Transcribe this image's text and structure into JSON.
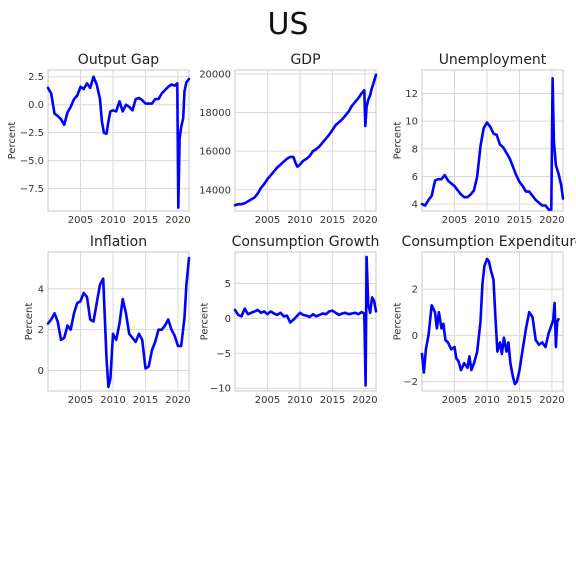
{
  "figure_title": "US",
  "chart_data": [
    {
      "type": "line",
      "title": "Output Gap",
      "xlabel": "",
      "ylabel": "Percent",
      "xlim": [
        2000.0,
        2021.7
      ],
      "ylim": [
        -9.5,
        3.1
      ],
      "xticks": [
        2005,
        2010,
        2015,
        2020
      ],
      "yticks": [
        2.5,
        0.0,
        -2.5,
        -5.0,
        -7.5
      ],
      "yticklabels": [
        "2.5",
        "0.0",
        "−2.5",
        "−5.0",
        "−7.5"
      ],
      "grid": true,
      "series": [
        {
          "color": "#0000ff",
          "x": [
            2000.0,
            2000.5,
            2001.0,
            2001.5,
            2002.0,
            2002.5,
            2003.0,
            2003.5,
            2004.0,
            2004.5,
            2005.0,
            2005.5,
            2006.0,
            2006.5,
            2007.0,
            2007.5,
            2008.0,
            2008.3,
            2008.6,
            2009.0,
            2009.3,
            2009.6,
            2010.0,
            2010.5,
            2011.0,
            2011.5,
            2012.0,
            2012.5,
            2013.0,
            2013.5,
            2014.0,
            2014.5,
            2015.0,
            2015.5,
            2016.0,
            2016.5,
            2017.0,
            2017.5,
            2018.0,
            2018.5,
            2019.0,
            2019.5,
            2019.9,
            2020.05,
            2020.25,
            2020.5,
            2020.8,
            2021.0,
            2021.3,
            2021.7
          ],
          "y": [
            1.5,
            1.0,
            -0.8,
            -1.0,
            -1.3,
            -1.8,
            -0.7,
            -0.2,
            0.5,
            0.8,
            1.6,
            1.4,
            1.9,
            1.5,
            2.5,
            1.8,
            0.5,
            -1.5,
            -2.5,
            -2.6,
            -1.5,
            -0.6,
            -0.5,
            -0.6,
            0.3,
            -0.6,
            0.0,
            -0.2,
            -0.5,
            0.5,
            0.6,
            0.4,
            0.1,
            0.1,
            0.1,
            0.5,
            0.5,
            1.0,
            1.3,
            1.6,
            1.8,
            1.7,
            1.9,
            -9.2,
            -3.0,
            -2.0,
            -1.2,
            1.2,
            2.0,
            2.3
          ]
        }
      ]
    },
    {
      "type": "line",
      "title": "GDP",
      "xlabel": "",
      "ylabel": "",
      "xlim": [
        2000.0,
        2021.7
      ],
      "ylim": [
        12900,
        20200
      ],
      "xticks": [
        2005,
        2010,
        2015,
        2020
      ],
      "yticks": [
        20000,
        18000,
        16000,
        14000
      ],
      "yticklabels": [
        "20000",
        "18000",
        "16000",
        "14000"
      ],
      "grid": true,
      "series": [
        {
          "color": "#0000ff",
          "x": [
            2000.0,
            2000.5,
            2001.0,
            2001.5,
            2002.0,
            2002.5,
            2003.0,
            2003.5,
            2004.0,
            2004.5,
            2005.0,
            2005.5,
            2006.0,
            2006.5,
            2007.0,
            2007.5,
            2008.0,
            2008.5,
            2009.0,
            2009.3,
            2009.6,
            2010.0,
            2010.5,
            2011.0,
            2011.5,
            2012.0,
            2012.5,
            2013.0,
            2013.5,
            2014.0,
            2014.5,
            2015.0,
            2015.5,
            2016.0,
            2016.5,
            2017.0,
            2017.5,
            2018.0,
            2018.5,
            2019.0,
            2019.5,
            2019.9,
            2020.05,
            2020.25,
            2020.5,
            2020.8,
            2021.0,
            2021.3,
            2021.7
          ],
          "y": [
            13200,
            13250,
            13250,
            13300,
            13400,
            13500,
            13600,
            13800,
            14100,
            14300,
            14550,
            14750,
            14950,
            15150,
            15300,
            15450,
            15600,
            15700,
            15700,
            15400,
            15200,
            15300,
            15500,
            15600,
            15750,
            16000,
            16100,
            16250,
            16450,
            16650,
            16850,
            17100,
            17350,
            17500,
            17650,
            17850,
            18050,
            18350,
            18550,
            18750,
            19000,
            19150,
            17300,
            18300,
            18650,
            18900,
            19200,
            19500,
            19950
          ]
        }
      ]
    },
    {
      "type": "line",
      "title": "Unemployment",
      "xlabel": "",
      "ylabel": "Percent",
      "xlim": [
        2000.0,
        2021.7
      ],
      "ylim": [
        3.5,
        13.7
      ],
      "xticks": [
        2005,
        2010,
        2015,
        2020
      ],
      "yticks": [
        12,
        10,
        8,
        6,
        4
      ],
      "yticklabels": [
        "12",
        "10",
        "8",
        "6",
        "4"
      ],
      "grid": true,
      "series": [
        {
          "color": "#0000ff",
          "x": [
            2000.0,
            2000.5,
            2001.0,
            2001.5,
            2002.0,
            2002.5,
            2003.0,
            2003.5,
            2004.0,
            2004.5,
            2005.0,
            2005.5,
            2006.0,
            2006.5,
            2007.0,
            2007.5,
            2008.0,
            2008.5,
            2009.0,
            2009.5,
            2010.0,
            2010.5,
            2011.0,
            2011.5,
            2012.0,
            2012.5,
            2013.0,
            2013.5,
            2014.0,
            2014.5,
            2015.0,
            2015.5,
            2016.0,
            2016.5,
            2017.0,
            2017.5,
            2018.0,
            2018.5,
            2019.0,
            2019.5,
            2019.9,
            2020.1,
            2020.3,
            2020.6,
            2021.0,
            2021.4,
            2021.7
          ],
          "y": [
            4.0,
            3.9,
            4.3,
            4.6,
            5.7,
            5.8,
            5.8,
            6.1,
            5.7,
            5.5,
            5.3,
            5.0,
            4.7,
            4.5,
            4.5,
            4.7,
            5.0,
            6.0,
            8.2,
            9.5,
            9.9,
            9.6,
            9.1,
            9.0,
            8.3,
            8.1,
            7.7,
            7.3,
            6.7,
            6.1,
            5.6,
            5.3,
            4.9,
            4.9,
            4.6,
            4.3,
            4.1,
            3.9,
            3.9,
            3.6,
            3.6,
            13.1,
            8.5,
            6.8,
            6.2,
            5.4,
            4.4
          ]
        }
      ]
    },
    {
      "type": "line",
      "title": "Inflation",
      "xlabel": "",
      "ylabel": "Percent",
      "xlim": [
        2000.0,
        2021.7
      ],
      "ylim": [
        -1.0,
        5.8
      ],
      "xticks": [
        2005,
        2010,
        2015,
        2020
      ],
      "yticks": [
        4,
        2,
        0
      ],
      "yticklabels": [
        "4",
        "2",
        "0"
      ],
      "grid": true,
      "series": [
        {
          "color": "#0000ff",
          "x": [
            2000.0,
            2000.5,
            2001.0,
            2001.5,
            2002.0,
            2002.5,
            2003.0,
            2003.5,
            2004.0,
            2004.5,
            2005.0,
            2005.5,
            2006.0,
            2006.5,
            2007.0,
            2007.5,
            2008.0,
            2008.5,
            2009.0,
            2009.3,
            2009.6,
            2010.0,
            2010.5,
            2011.0,
            2011.5,
            2012.0,
            2012.5,
            2013.0,
            2013.5,
            2014.0,
            2014.5,
            2015.0,
            2015.5,
            2016.0,
            2016.5,
            2017.0,
            2017.5,
            2018.0,
            2018.5,
            2019.0,
            2019.5,
            2020.0,
            2020.5,
            2021.0,
            2021.3,
            2021.7
          ],
          "y": [
            2.3,
            2.5,
            2.8,
            2.4,
            1.5,
            1.6,
            2.2,
            2.0,
            2.8,
            3.3,
            3.4,
            3.8,
            3.6,
            2.5,
            2.4,
            3.3,
            4.2,
            4.5,
            0.6,
            -0.8,
            -0.4,
            1.8,
            1.5,
            2.3,
            3.5,
            2.8,
            1.8,
            1.6,
            1.4,
            1.8,
            1.5,
            0.1,
            0.2,
            1.0,
            1.4,
            2.0,
            2.0,
            2.2,
            2.5,
            2.0,
            1.7,
            1.2,
            1.2,
            2.6,
            4.2,
            5.5
          ]
        }
      ]
    },
    {
      "type": "line",
      "title": "Consumption Growth",
      "xlabel": "",
      "ylabel": "Percent",
      "xlim": [
        2000.0,
        2021.7
      ],
      "ylim": [
        -10.4,
        9.5
      ],
      "xticks": [
        2005,
        2010,
        2015,
        2020
      ],
      "yticks": [
        5,
        0,
        -5,
        -10
      ],
      "yticklabels": [
        "5",
        "0",
        "−5",
        "−10"
      ],
      "grid": true,
      "series": [
        {
          "color": "#0000ff",
          "x": [
            2000.0,
            2000.5,
            2001.0,
            2001.5,
            2002.0,
            2002.5,
            2003.0,
            2003.5,
            2004.0,
            2004.5,
            2005.0,
            2005.5,
            2006.0,
            2006.5,
            2007.0,
            2007.5,
            2008.0,
            2008.5,
            2009.0,
            2009.5,
            2010.0,
            2010.5,
            2011.0,
            2011.5,
            2012.0,
            2012.5,
            2013.0,
            2013.5,
            2014.0,
            2014.5,
            2015.0,
            2015.5,
            2016.0,
            2016.5,
            2017.0,
            2017.5,
            2018.0,
            2018.5,
            2019.0,
            2019.5,
            2019.9,
            2020.1,
            2020.25,
            2020.5,
            2020.8,
            2021.1,
            2021.4,
            2021.7
          ],
          "y": [
            1.2,
            0.5,
            0.3,
            1.4,
            0.6,
            0.8,
            1.0,
            1.2,
            0.8,
            1.0,
            0.6,
            1.0,
            0.7,
            0.5,
            0.8,
            0.3,
            0.4,
            -0.6,
            -0.2,
            0.3,
            0.8,
            0.5,
            0.4,
            0.2,
            0.6,
            0.3,
            0.5,
            0.7,
            0.6,
            1.0,
            1.1,
            0.8,
            0.5,
            0.7,
            0.8,
            0.6,
            0.7,
            0.8,
            0.6,
            0.9,
            0.7,
            -9.6,
            8.8,
            2.0,
            0.8,
            3.0,
            2.5,
            1.0
          ]
        }
      ]
    },
    {
      "type": "line",
      "title": "Consumption Expenditure",
      "xlabel": "",
      "ylabel": "Percent",
      "xlim": [
        2000.0,
        2021.7
      ],
      "ylim": [
        -2.4,
        3.6
      ],
      "xticks": [
        2005,
        2010,
        2015,
        2020
      ],
      "yticks": [
        2,
        0,
        -2
      ],
      "yticklabels": [
        "2",
        "0",
        "−2"
      ],
      "grid": true,
      "series": [
        {
          "color": "#0000ff",
          "x": [
            2000.0,
            2000.3,
            2000.6,
            2001.0,
            2001.5,
            2002.0,
            2002.3,
            2002.6,
            2003.0,
            2003.3,
            2003.6,
            2004.0,
            2004.5,
            2005.0,
            2005.3,
            2005.6,
            2006.0,
            2006.5,
            2007.0,
            2007.3,
            2007.6,
            2008.0,
            2008.5,
            2009.0,
            2009.3,
            2009.6,
            2010.0,
            2010.3,
            2010.6,
            2011.0,
            2011.3,
            2011.6,
            2012.0,
            2012.3,
            2012.6,
            2013.0,
            2013.3,
            2013.6,
            2014.0,
            2014.3,
            2014.6,
            2015.0,
            2015.5,
            2016.0,
            2016.5,
            2017.0,
            2017.5,
            2018.0,
            2018.5,
            2019.0,
            2019.5,
            2020.0,
            2020.2,
            2020.4,
            2020.6,
            2020.8,
            2021.0
          ],
          "y": [
            -0.8,
            -1.6,
            -0.6,
            0.0,
            1.3,
            1.0,
            0.3,
            1.0,
            0.3,
            0.5,
            -0.2,
            -0.3,
            -0.6,
            -0.5,
            -1.0,
            -1.1,
            -1.5,
            -1.2,
            -1.4,
            -0.9,
            -1.5,
            -1.2,
            -0.7,
            0.6,
            2.2,
            3.0,
            3.3,
            3.2,
            2.8,
            2.4,
            0.8,
            -0.7,
            -0.3,
            -0.8,
            -0.1,
            -0.7,
            -0.3,
            -1.2,
            -1.8,
            -2.1,
            -2.0,
            -1.5,
            -0.6,
            0.3,
            1.0,
            0.8,
            -0.2,
            -0.4,
            -0.3,
            -0.5,
            0.1,
            0.5,
            0.7,
            1.4,
            -0.5,
            0.6,
            0.7
          ]
        }
      ]
    }
  ]
}
